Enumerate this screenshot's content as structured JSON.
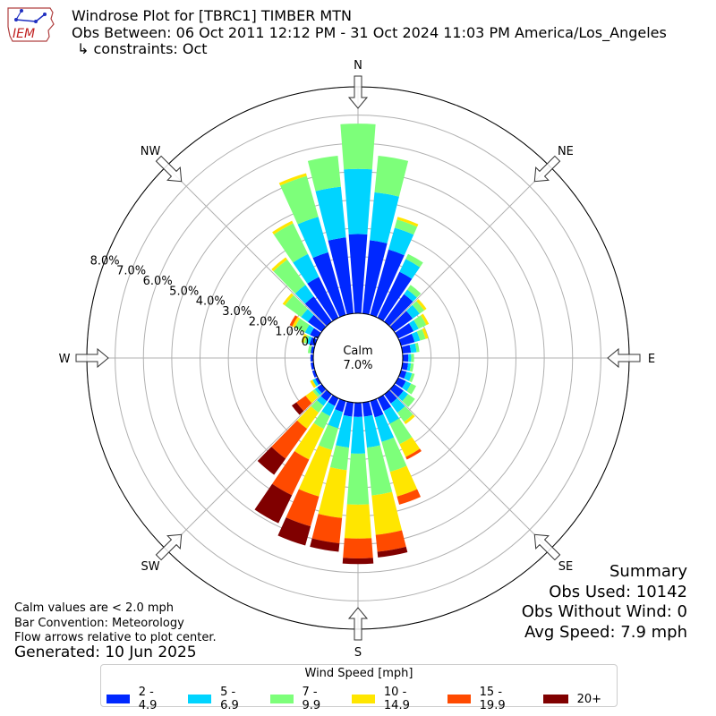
{
  "header": {
    "title": "Windrose Plot for [TBRC1] TIMBER MTN",
    "obs_range": "Obs Between: 06 Oct 2011 12:12 PM - 31 Oct 2024 11:03 PM America/Los_Angeles",
    "constraints": "↳ constraints: Oct",
    "logo_text": "IEM"
  },
  "summary": {
    "title": "Summary",
    "obs_used": "Obs Used: 10142",
    "obs_without_wind": "Obs Without Wind: 0",
    "avg_speed": "Avg Speed: 7.9 mph"
  },
  "notes": {
    "calm_note": "Calm values are < 2.0 mph",
    "bar_convention": "Bar Convention: Meteorology",
    "flow_arrows": "Flow arrows relative to plot center.",
    "generated": "Generated: 10 Jun 2025"
  },
  "colors": {
    "bins": [
      "#0028ff",
      "#00d4ff",
      "#7dff7a",
      "#ffe600",
      "#ff4a00",
      "#800000"
    ],
    "ring": "#b0b0b0",
    "frame": "#000000"
  },
  "chart_data": {
    "type": "windrose",
    "center_label": "Calm",
    "calm_percent": "7.0%",
    "rlim": [
      0,
      8.0
    ],
    "radial_ticks": [
      "0.0%",
      "1.0%",
      "2.0%",
      "3.0%",
      "4.0%",
      "5.0%",
      "6.0%",
      "7.0%",
      "8.0%"
    ],
    "compass_labels": [
      "N",
      "NE",
      "E",
      "SE",
      "S",
      "SW",
      "W",
      "NW"
    ],
    "legend_title": "Wind Speed [mph]",
    "bins": [
      "2 - 4.9",
      "5 - 6.9",
      "7 - 9.9",
      "10 - 14.9",
      "15 - 19.9",
      "20+"
    ],
    "directions_deg": [
      0,
      10,
      20,
      30,
      40,
      50,
      60,
      70,
      80,
      90,
      100,
      110,
      120,
      130,
      140,
      150,
      160,
      170,
      180,
      190,
      200,
      210,
      220,
      230,
      240,
      250,
      260,
      270,
      280,
      290,
      300,
      310,
      320,
      330,
      340,
      350
    ],
    "cumulative_percent": [
      [
        2.8,
        5.1,
        6.7,
        6.7,
        6.7,
        6.7
      ],
      [
        2.6,
        4.3,
        5.6,
        5.6,
        5.6,
        5.6
      ],
      [
        2.4,
        3.2,
        3.5,
        3.6,
        3.6,
        3.6
      ],
      [
        1.8,
        2.3,
        2.5,
        2.5,
        2.5,
        2.5
      ],
      [
        1.2,
        1.4,
        1.6,
        1.6,
        1.6,
        1.6
      ],
      [
        0.8,
        1.1,
        1.3,
        1.4,
        1.4,
        1.4
      ],
      [
        0.6,
        0.8,
        1.1,
        1.2,
        1.2,
        1.2
      ],
      [
        0.5,
        0.7,
        0.9,
        1.0,
        1.0,
        1.0
      ],
      [
        0.3,
        0.5,
        0.6,
        0.6,
        0.6,
        0.6
      ],
      [
        0.2,
        0.3,
        0.4,
        0.4,
        0.4,
        0.4
      ],
      [
        0.2,
        0.3,
        0.4,
        0.4,
        0.4,
        0.4
      ],
      [
        0.2,
        0.4,
        0.5,
        0.5,
        0.5,
        0.5
      ],
      [
        0.3,
        0.5,
        0.7,
        0.7,
        0.7,
        0.7
      ],
      [
        0.4,
        0.6,
        0.9,
        0.9,
        0.9,
        0.9
      ],
      [
        0.4,
        0.8,
        1.2,
        1.3,
        1.3,
        1.3
      ],
      [
        0.5,
        1.0,
        1.8,
        2.3,
        2.4,
        2.4
      ],
      [
        0.6,
        1.5,
        2.6,
        3.5,
        3.8,
        3.8
      ],
      [
        0.5,
        1.6,
        3.3,
        4.7,
        5.3,
        5.5
      ],
      [
        0.5,
        1.8,
        3.6,
        4.8,
        5.5,
        5.7
      ],
      [
        0.5,
        1.6,
        2.4,
        4.1,
        5.0,
        5.3
      ],
      [
        0.4,
        1.0,
        1.8,
        3.5,
        4.6,
        5.3
      ],
      [
        0.3,
        0.7,
        1.2,
        2.4,
        3.8,
        4.9
      ],
      [
        0.3,
        0.5,
        0.8,
        1.5,
        2.8,
        3.5
      ],
      [
        0.2,
        0.3,
        0.4,
        0.7,
        1.1,
        1.3
      ],
      [
        0.1,
        0.2,
        0.2,
        0.3,
        0.3,
        0.3
      ],
      [
        0.1,
        0.1,
        0.1,
        0.1,
        0.1,
        0.1
      ],
      [
        0.1,
        0.1,
        0.1,
        0.1,
        0.1,
        0.1
      ],
      [
        0.1,
        0.1,
        0.1,
        0.1,
        0.1,
        0.1
      ],
      [
        0.1,
        0.1,
        0.2,
        0.2,
        0.2,
        0.2
      ],
      [
        0.2,
        0.3,
        0.4,
        0.5,
        0.5,
        0.5
      ],
      [
        0.3,
        0.5,
        0.9,
        1.0,
        1.1,
        1.1
      ],
      [
        0.6,
        0.9,
        1.6,
        1.7,
        1.7,
        1.7
      ],
      [
        1.1,
        1.6,
        2.7,
        2.8,
        2.8,
        2.8
      ],
      [
        1.6,
        2.5,
        3.7,
        3.8,
        3.8,
        3.8
      ],
      [
        2.3,
        3.6,
        5.1,
        5.2,
        5.2,
        5.2
      ],
      [
        2.7,
        4.5,
        5.6,
        5.6,
        5.6,
        5.6
      ]
    ]
  }
}
